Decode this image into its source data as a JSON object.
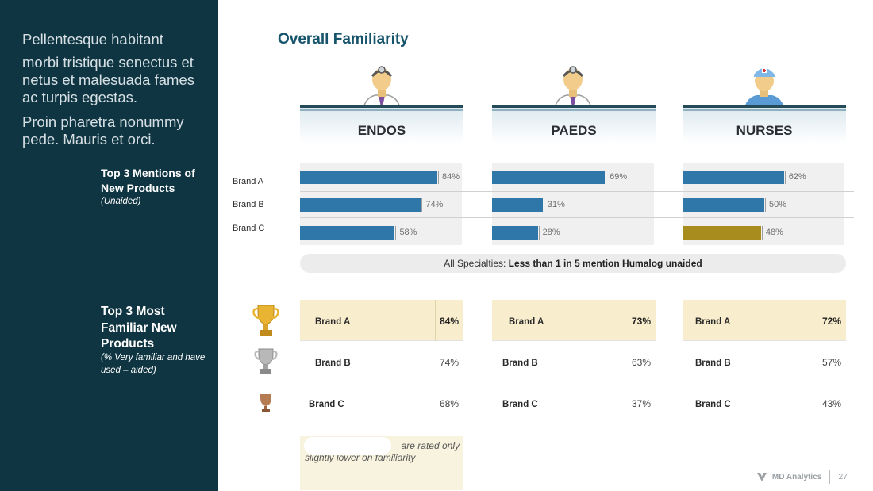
{
  "sidebar": {
    "p1": "Pellentesque habitant",
    "p2": "morbi tristique senectus et netus et malesuada fames ac turpis egestas.",
    "p3": "Proin pharetra nonummy pede. Mauris et orci.",
    "section1_title": "Top 3 Mentions of New Products",
    "section1_sub": "(Unaided)",
    "section2_title": "Top 3 Most Familiar  New Products",
    "section2_sub": "(% Very familiar and have used – aided)"
  },
  "title": "Overall Familiarity",
  "columns": [
    {
      "name": "ENDOS",
      "icon": "doctor-icon"
    },
    {
      "name": "PAEDS",
      "icon": "doctor-icon"
    },
    {
      "name": "NURSES",
      "icon": "nurse-icon"
    }
  ],
  "row_labels": [
    "Brand A",
    "Brand B",
    "Brand C"
  ],
  "chart_data": {
    "type": "bar",
    "orientation": "horizontal",
    "categories": [
      "Brand A",
      "Brand B",
      "Brand C"
    ],
    "series": [
      {
        "name": "ENDOS",
        "values": [
          84,
          74,
          58
        ],
        "labels": [
          "84%",
          "74%",
          "58%"
        ]
      },
      {
        "name": "PAEDS",
        "values": [
          69,
          31,
          28
        ],
        "labels": [
          "69%",
          "31%",
          "28%"
        ]
      },
      {
        "name": "NURSES",
        "values": [
          62,
          50,
          48
        ],
        "labels": [
          "62%",
          "50%",
          "48%"
        ]
      }
    ],
    "xlim": [
      0,
      100
    ],
    "colors": {
      "bar": "#2e77a8",
      "highlight": "#a88c1e"
    }
  },
  "note": {
    "prefix": "All Specialties: ",
    "bold": "Less than 1 in 5 mention Humalog unaided"
  },
  "familiar": [
    {
      "rows": [
        {
          "brand": "Brand A",
          "pct": "84%"
        },
        {
          "brand": "Brand B",
          "pct": "74%"
        },
        {
          "brand": "Brand C",
          "pct": "68%"
        }
      ]
    },
    {
      "rows": [
        {
          "brand": "Brand A",
          "pct": "73%"
        },
        {
          "brand": "Brand B",
          "pct": "63%"
        },
        {
          "brand": "Brand C",
          "pct": "37%"
        }
      ]
    },
    {
      "rows": [
        {
          "brand": "Brand A",
          "pct": "72%"
        },
        {
          "brand": "Brand B",
          "pct": "57%"
        },
        {
          "brand": "Brand C",
          "pct": "43%"
        }
      ]
    }
  ],
  "trophies": [
    "gold-trophy-icon",
    "silver-trophy-icon",
    "bronze-trophy-icon"
  ],
  "bottom_note": {
    "line1": "are rated only",
    "line2": "slightly lower on familiarity"
  },
  "footer": {
    "logo": "MD Analytics",
    "page": "27"
  }
}
